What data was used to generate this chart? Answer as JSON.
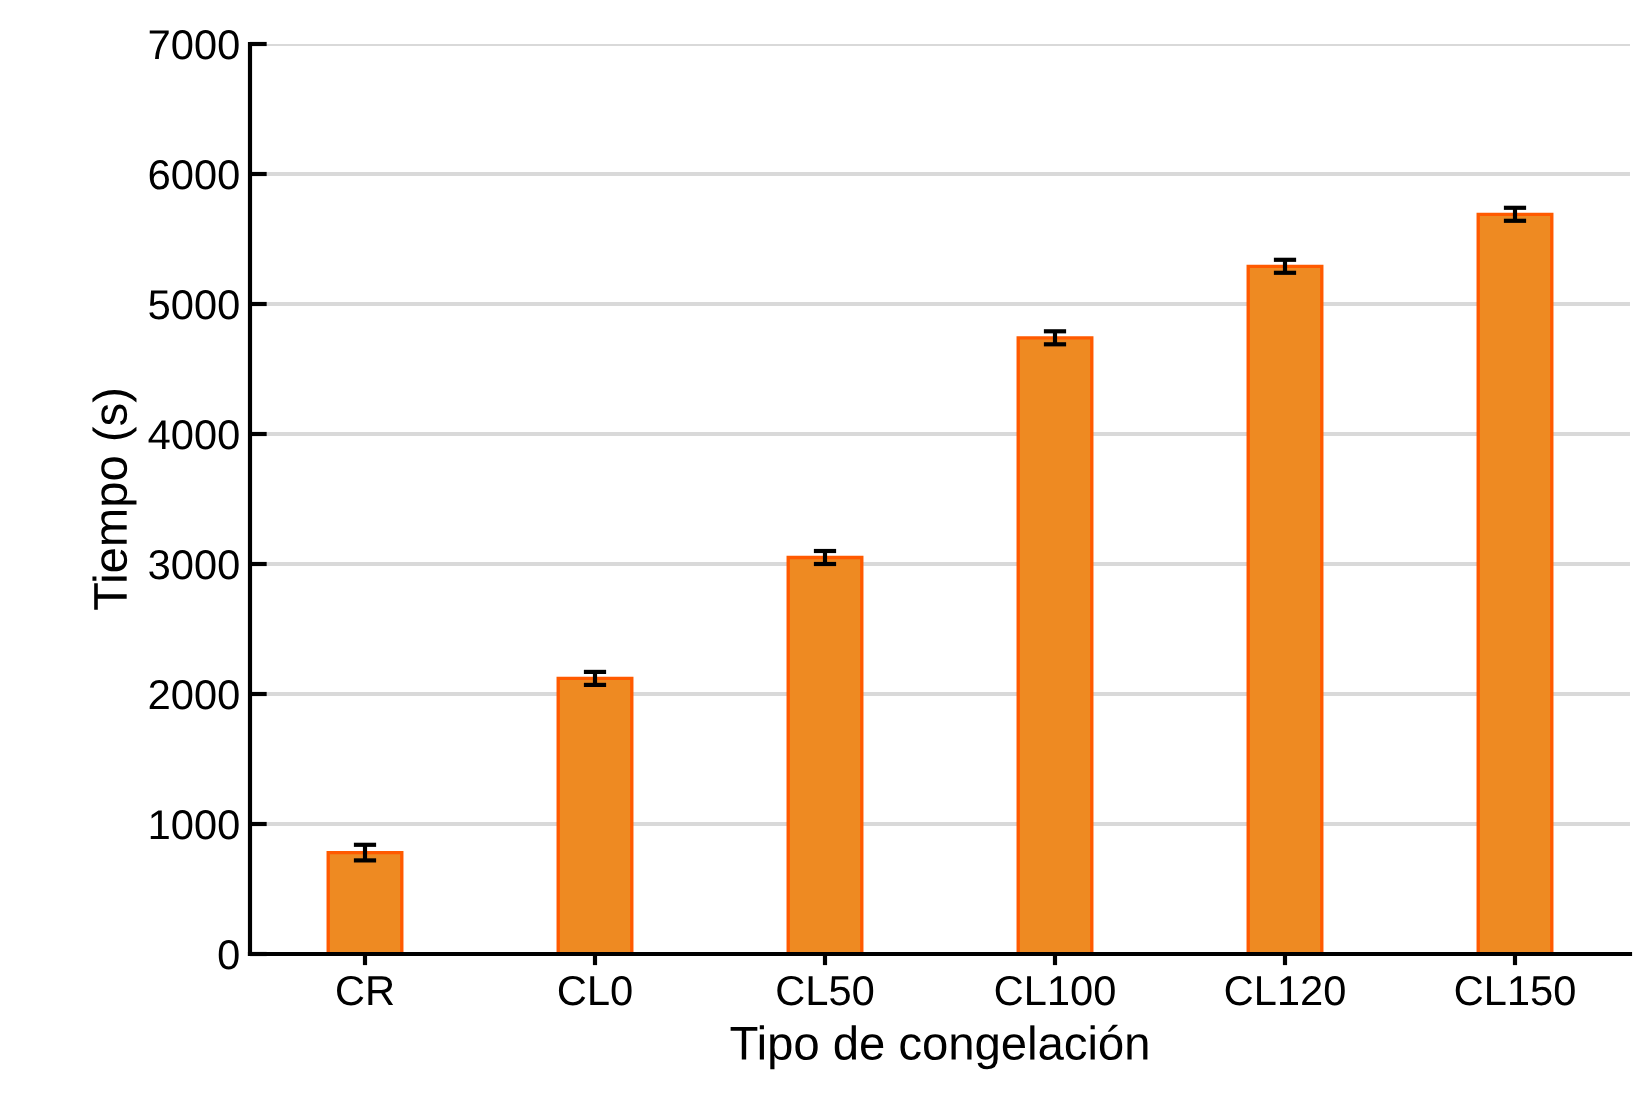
{
  "chart_data": {
    "type": "bar",
    "xlabel": "Tipo de congelación",
    "ylabel": "Tiempo (s)",
    "categories": [
      "CR",
      "CL0",
      "CL50",
      "CL100",
      "CL120",
      "CL150"
    ],
    "series": [
      {
        "color": "#ee8a22",
        "values": [
          780,
          2120,
          3050,
          4740,
          5290,
          5690
        ],
        "errors": [
          60,
          50,
          50,
          50,
          50,
          50
        ]
      }
    ],
    "ylim": [
      0,
      7000
    ],
    "yticks": [
      0,
      1000,
      2000,
      3000,
      4000,
      5000,
      6000,
      7000
    ],
    "grid": "y",
    "legend": false
  }
}
